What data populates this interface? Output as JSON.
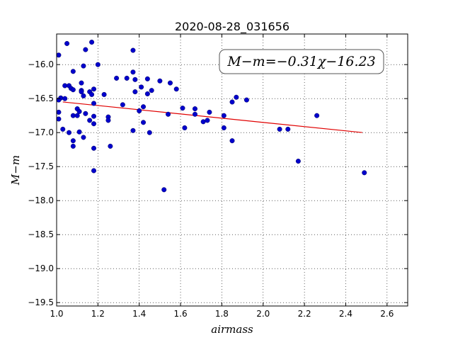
{
  "chart_data": {
    "type": "scatter",
    "title": "2020-08-28_031656",
    "xlabel": "airmass",
    "ylabel": "M−m",
    "xlim": [
      1.0,
      2.7
    ],
    "ylim": [
      -19.55,
      -15.55
    ],
    "y_inverted": true,
    "grid": true,
    "x_ticks": [
      1.0,
      1.2,
      1.4,
      1.6,
      1.8,
      2.0,
      2.2,
      2.4,
      2.6
    ],
    "x_tick_labels": [
      "1.0",
      "1.2",
      "1.4",
      "1.6",
      "1.8",
      "2.0",
      "2.2",
      "2.4",
      "2.6"
    ],
    "y_ticks": [
      -16.0,
      -16.5,
      -17.0,
      -17.5,
      -18.0,
      -18.5,
      -19.0,
      -19.5
    ],
    "y_tick_labels": [
      "−16.0",
      "−16.5",
      "−17.0",
      "−17.5",
      "−18.0",
      "−18.5",
      "−19.0",
      "−19.5"
    ],
    "annotation": "M−m=−0.31χ−16.23",
    "point_color": "#0000cc",
    "fit_color": "#e00000",
    "fit_line": {
      "slope": -0.31,
      "intercept": -16.23,
      "x": [
        1.03,
        2.48
      ]
    },
    "points": [
      [
        1.01,
        -15.86
      ],
      [
        1.05,
        -15.69
      ],
      [
        1.08,
        -16.1
      ],
      [
        1.04,
        -16.31
      ],
      [
        1.06,
        -16.31
      ],
      [
        1.02,
        -16.49
      ],
      [
        1.01,
        -16.52
      ],
      [
        1.04,
        -16.5
      ],
      [
        1.07,
        -16.35
      ],
      [
        1.08,
        -16.37
      ],
      [
        1.01,
        -16.7
      ],
      [
        1.01,
        -16.8
      ],
      [
        1.03,
        -16.95
      ],
      [
        1.06,
        -17.0
      ],
      [
        1.08,
        -17.12
      ],
      [
        1.08,
        -17.2
      ],
      [
        1.08,
        -16.75
      ],
      [
        1.1,
        -16.65
      ],
      [
        1.11,
        -16.69
      ],
      [
        1.1,
        -16.75
      ],
      [
        1.11,
        -16.99
      ],
      [
        1.12,
        -16.38
      ],
      [
        1.12,
        -16.4
      ],
      [
        1.13,
        -16.46
      ],
      [
        1.12,
        -16.27
      ],
      [
        1.13,
        -16.02
      ],
      [
        1.14,
        -15.78
      ],
      [
        1.17,
        -15.67
      ],
      [
        1.16,
        -16.4
      ],
      [
        1.17,
        -16.44
      ],
      [
        1.18,
        -16.36
      ],
      [
        1.18,
        -16.57
      ],
      [
        1.14,
        -16.72
      ],
      [
        1.16,
        -16.82
      ],
      [
        1.18,
        -16.87
      ],
      [
        1.18,
        -16.76
      ],
      [
        1.13,
        -17.07
      ],
      [
        1.18,
        -17.23
      ],
      [
        1.18,
        -17.56
      ],
      [
        1.2,
        -16.0
      ],
      [
        1.23,
        -16.44
      ],
      [
        1.25,
        -16.77
      ],
      [
        1.25,
        -16.82
      ],
      [
        1.26,
        -17.2
      ],
      [
        1.29,
        -16.2
      ],
      [
        1.32,
        -16.59
      ],
      [
        1.34,
        -16.2
      ],
      [
        1.37,
        -15.79
      ],
      [
        1.37,
        -16.11
      ],
      [
        1.38,
        -16.22
      ],
      [
        1.38,
        -16.4
      ],
      [
        1.41,
        -16.33
      ],
      [
        1.4,
        -16.68
      ],
      [
        1.42,
        -16.62
      ],
      [
        1.37,
        -16.97
      ],
      [
        1.42,
        -16.85
      ],
      [
        1.44,
        -16.21
      ],
      [
        1.44,
        -16.43
      ],
      [
        1.46,
        -16.38
      ],
      [
        1.45,
        -17.0
      ],
      [
        1.5,
        -16.24
      ],
      [
        1.52,
        -17.84
      ],
      [
        1.54,
        -16.73
      ],
      [
        1.55,
        -16.27
      ],
      [
        1.58,
        -16.36
      ],
      [
        1.61,
        -16.64
      ],
      [
        1.62,
        -16.93
      ],
      [
        1.67,
        -16.65
      ],
      [
        1.67,
        -16.73
      ],
      [
        1.71,
        -16.84
      ],
      [
        1.73,
        -16.82
      ],
      [
        1.74,
        -16.7
      ],
      [
        1.81,
        -16.75
      ],
      [
        1.81,
        -16.93
      ],
      [
        1.85,
        -16.55
      ],
      [
        1.85,
        -17.12
      ],
      [
        1.87,
        -16.48
      ],
      [
        1.92,
        -16.52
      ],
      [
        2.08,
        -16.95
      ],
      [
        2.12,
        -16.95
      ],
      [
        2.17,
        -17.42
      ],
      [
        2.26,
        -16.75
      ],
      [
        2.49,
        -17.59
      ]
    ]
  }
}
